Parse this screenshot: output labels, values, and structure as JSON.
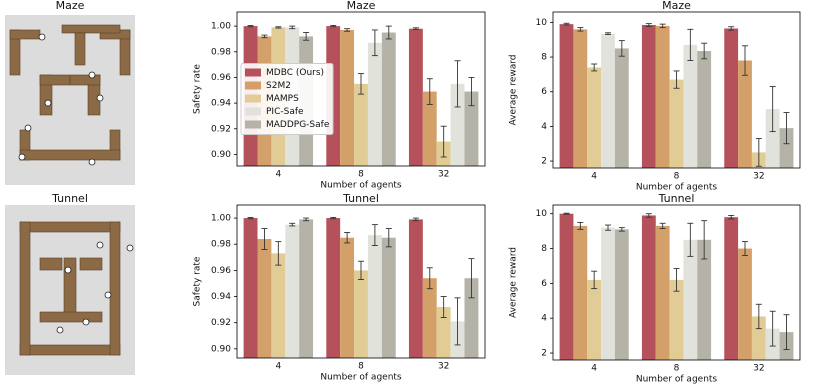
{
  "panels": [
    {
      "title": "Maze"
    },
    {
      "title": "Tunnel"
    }
  ],
  "chart_data": [
    {
      "type": "bar",
      "title": "Maze",
      "xlabel": "Number of agents",
      "ylabel": "Safety rate",
      "categories": [
        "4",
        "8",
        "32"
      ],
      "ylim": [
        0.891,
        1.011
      ],
      "yticks": [
        {
          "value": 0.9,
          "label": "0.90"
        },
        {
          "value": 0.92,
          "label": "0.92"
        },
        {
          "value": 0.94,
          "label": "0.94"
        },
        {
          "value": 0.96,
          "label": "0.96"
        },
        {
          "value": 0.98,
          "label": "0.98"
        },
        {
          "value": 1.0,
          "label": "1.00"
        }
      ],
      "legend": "center left",
      "series": [
        {
          "name": "MDBC (Ours)",
          "color": "#b5515a",
          "values": [
            1.0,
            1.0,
            0.998
          ],
          "errors": [
            0.0005,
            0.0005,
            0.0007
          ]
        },
        {
          "name": "S2M2",
          "color": "#d4a06a",
          "values": [
            0.992,
            0.997,
            0.949
          ],
          "errors": [
            0.001,
            0.001,
            0.01
          ]
        },
        {
          "name": "MAMPS",
          "color": "#e0cc94",
          "values": [
            0.999,
            0.955,
            0.91
          ],
          "errors": [
            0.0005,
            0.008,
            0.012
          ]
        },
        {
          "name": "PIC-Safe",
          "color": "#e2e2dc",
          "values": [
            0.999,
            0.987,
            0.955
          ],
          "errors": [
            0.001,
            0.01,
            0.018
          ]
        },
        {
          "name": "MADDPG-Safe",
          "color": "#b5b3a8",
          "values": [
            0.992,
            0.995,
            0.949
          ],
          "errors": [
            0.003,
            0.005,
            0.011
          ]
        }
      ]
    },
    {
      "type": "bar",
      "title": "Maze",
      "xlabel": "Number of agents",
      "ylabel": "Average reward",
      "categories": [
        "4",
        "8",
        "32"
      ],
      "ylim": [
        1.6,
        10.6
      ],
      "yticks": [
        2,
        4,
        6,
        8,
        10
      ],
      "series": [
        {
          "name": "MDBC (Ours)",
          "color": "#b5515a",
          "values": [
            9.9,
            9.85,
            9.65
          ],
          "errors": [
            0.05,
            0.08,
            0.1
          ]
        },
        {
          "name": "S2M2",
          "color": "#d4a06a",
          "values": [
            9.6,
            9.8,
            7.8
          ],
          "errors": [
            0.1,
            0.1,
            0.85
          ]
        },
        {
          "name": "MAMPS",
          "color": "#e0cc94",
          "values": [
            7.4,
            6.7,
            2.5
          ],
          "errors": [
            0.2,
            0.5,
            0.8
          ]
        },
        {
          "name": "PIC-Safe",
          "color": "#e2e2dc",
          "values": [
            9.35,
            8.7,
            5.0
          ],
          "errors": [
            0.05,
            0.9,
            1.3
          ]
        },
        {
          "name": "MADDPG-Safe",
          "color": "#b5b3a8",
          "values": [
            8.5,
            8.35,
            3.9
          ],
          "errors": [
            0.45,
            0.45,
            0.9
          ]
        }
      ]
    },
    {
      "type": "bar",
      "title": "Tunnel",
      "xlabel": "Number of agents",
      "ylabel": "Safety rate",
      "categories": [
        "4",
        "8",
        "32"
      ],
      "ylim": [
        0.893,
        1.01
      ],
      "yticks": [
        {
          "value": 0.9,
          "label": "0.90"
        },
        {
          "value": 0.92,
          "label": "0.92"
        },
        {
          "value": 0.94,
          "label": "0.94"
        },
        {
          "value": 0.96,
          "label": "0.96"
        },
        {
          "value": 0.98,
          "label": "0.98"
        },
        {
          "value": 1.0,
          "label": "1.00"
        }
      ],
      "series": [
        {
          "name": "MDBC (Ours)",
          "color": "#b5515a",
          "values": [
            1.0,
            1.0,
            0.999
          ],
          "errors": [
            0.0005,
            0.0005,
            0.001
          ]
        },
        {
          "name": "S2M2",
          "color": "#d4a06a",
          "values": [
            0.984,
            0.985,
            0.954
          ],
          "errors": [
            0.008,
            0.004,
            0.008
          ]
        },
        {
          "name": "MAMPS",
          "color": "#e0cc94",
          "values": [
            0.973,
            0.96,
            0.932
          ],
          "errors": [
            0.009,
            0.007,
            0.008
          ]
        },
        {
          "name": "PIC-Safe",
          "color": "#e2e2dc",
          "values": [
            0.995,
            0.987,
            0.921
          ],
          "errors": [
            0.001,
            0.008,
            0.018
          ]
        },
        {
          "name": "MADDPG-Safe",
          "color": "#b5b3a8",
          "values": [
            0.999,
            0.985,
            0.954
          ],
          "errors": [
            0.001,
            0.007,
            0.015
          ]
        }
      ]
    },
    {
      "type": "bar",
      "title": "Tunnel",
      "xlabel": "Number of agents",
      "ylabel": "Average reward",
      "categories": [
        "4",
        "8",
        "32"
      ],
      "ylim": [
        1.6,
        10.5
      ],
      "yticks": [
        2,
        4,
        6,
        8,
        10
      ],
      "series": [
        {
          "name": "MDBC (Ours)",
          "color": "#b5515a",
          "values": [
            10.0,
            9.9,
            9.8
          ],
          "errors": [
            0.03,
            0.1,
            0.1
          ]
        },
        {
          "name": "S2M2",
          "color": "#d4a06a",
          "values": [
            9.3,
            9.3,
            8.0
          ],
          "errors": [
            0.2,
            0.15,
            0.4
          ]
        },
        {
          "name": "MAMPS",
          "color": "#e0cc94",
          "values": [
            6.2,
            6.2,
            4.1
          ],
          "errors": [
            0.5,
            0.65,
            0.7
          ]
        },
        {
          "name": "PIC-Safe",
          "color": "#e2e2dc",
          "values": [
            9.2,
            8.5,
            3.4
          ],
          "errors": [
            0.15,
            0.95,
            1.0
          ]
        },
        {
          "name": "MADDPG-Safe",
          "color": "#b5b3a8",
          "values": [
            9.1,
            8.5,
            3.2
          ],
          "errors": [
            0.1,
            1.1,
            1.0
          ]
        }
      ]
    }
  ]
}
